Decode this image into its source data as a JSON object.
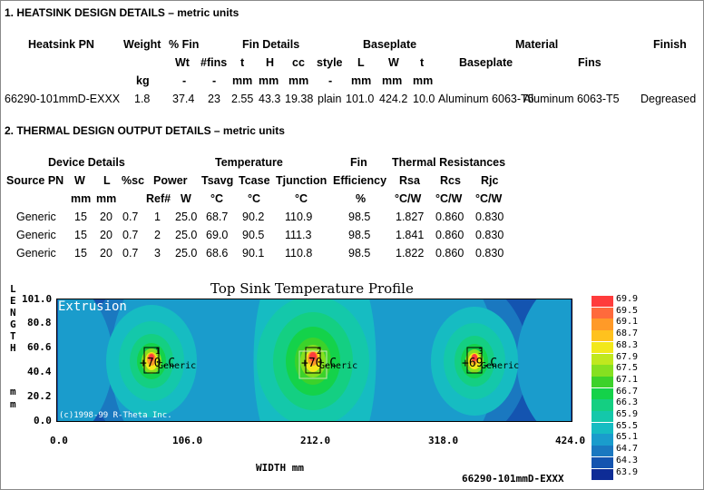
{
  "section1": {
    "title": "1. HEATSINK DESIGN DETAILS – metric units",
    "headers": {
      "pn": "Heatsink PN",
      "weight": "Weight",
      "pct_fin": "% Fin",
      "fin_details": "Fin Details",
      "baseplate": "Baseplate",
      "material": "Material",
      "finish": "Finish",
      "wt": "Wt",
      "nfins": "#fins",
      "t": "t",
      "h": "H",
      "cc": "cc",
      "style": "style",
      "bl": "L",
      "bw": "W",
      "bt": "t",
      "mat_base": "Baseplate",
      "mat_fins": "Fins"
    },
    "units": {
      "weight": "kg",
      "wt": "-",
      "nfins": "-",
      "t": "mm",
      "h": "mm",
      "cc": "mm",
      "style": "-",
      "bl": "mm",
      "bw": "mm",
      "bt": "mm"
    },
    "row": {
      "pn": "66290-101mmD-EXXX",
      "weight": "1.8",
      "wt": "37.4",
      "nfins": "23",
      "t": "2.55",
      "h": "43.3",
      "cc": "19.38",
      "style": "plain",
      "bl": "101.0",
      "bw": "424.2",
      "bt": "10.0",
      "mat_base": "Aluminum 6063-T5",
      "mat_fins": "Aluminum 6063-T5",
      "finish": "Degreased"
    }
  },
  "section2": {
    "title": "2. THERMAL DESIGN OUTPUT DETAILS – metric units",
    "headers": {
      "device_details": "Device Details",
      "temperature": "Temperature",
      "fin": "Fin",
      "thermal_res": "Thermal Resistances",
      "source_pn": "Source PN",
      "w": "W",
      "l": "L",
      "sc": "%sc",
      "power": "Power",
      "tsavg": "Tsavg",
      "tcase": "Tcase",
      "tjunction": "Tjunction",
      "efficiency": "Efficiency",
      "rsa": "Rsa",
      "rcs": "Rcs",
      "rjc": "Rjc"
    },
    "units": {
      "w": "mm",
      "l": "mm",
      "ref": "Ref#",
      "pw": "W",
      "tsavg": "°C",
      "tcase": "°C",
      "tjunction": "°C",
      "efficiency": "%",
      "rsa": "°C/W",
      "rcs": "°C/W",
      "rjc": "°C/W"
    },
    "rows": [
      {
        "source": "Generic",
        "w": "15",
        "l": "20",
        "sc": "0.7",
        "ref": "1",
        "power": "25.0",
        "tsavg": "68.7",
        "tcase": "90.2",
        "tjunction": "110.9",
        "eff": "98.5",
        "rsa": "1.827",
        "rcs": "0.860",
        "rjc": "0.830"
      },
      {
        "source": "Generic",
        "w": "15",
        "l": "20",
        "sc": "0.7",
        "ref": "2",
        "power": "25.0",
        "tsavg": "69.0",
        "tcase": "90.5",
        "tjunction": "111.3",
        "eff": "98.5",
        "rsa": "1.841",
        "rcs": "0.860",
        "rjc": "0.830"
      },
      {
        "source": "Generic",
        "w": "15",
        "l": "20",
        "sc": "0.7",
        "ref": "3",
        "power": "25.0",
        "tsavg": "68.6",
        "tcase": "90.1",
        "tjunction": "110.8",
        "eff": "98.5",
        "rsa": "1.822",
        "rcs": "0.860",
        "rjc": "0.830"
      }
    ]
  },
  "plot": {
    "title": "Top Sink Temperature Profile",
    "extrusion_label": "Extrusion",
    "copyright": "(c)1998-99 R-Theta Inc.",
    "y_axis_letters": [
      "L",
      "E",
      "N",
      "G",
      "T",
      "H",
      "",
      "m",
      "m"
    ],
    "x_label": "WIDTH mm",
    "footer_pn": "66290-101mmD-EXXX",
    "y_ticks": [
      "101.0",
      "80.8",
      "60.6",
      "40.4",
      "20.2",
      "0.0"
    ],
    "x_ticks": [
      "0.0",
      "106.0",
      "212.0",
      "318.0",
      "424.0"
    ],
    "sources": [
      {
        "num": "1",
        "label": "Generic",
        "temp_label": "+70.C"
      },
      {
        "num": "2",
        "label": "Generic",
        "temp_label": "+70.C"
      },
      {
        "num": "3",
        "label": "Generic",
        "temp_label": "+69.C"
      }
    ],
    "legend": [
      {
        "value": "69.9",
        "color": "#ff3c3c"
      },
      {
        "value": "69.5",
        "color": "#ff6a3c"
      },
      {
        "value": "69.1",
        "color": "#ff9a28"
      },
      {
        "value": "68.7",
        "color": "#ffc21e"
      },
      {
        "value": "68.3",
        "color": "#f2e81a"
      },
      {
        "value": "67.9",
        "color": "#c0e81e"
      },
      {
        "value": "67.5",
        "color": "#86e020"
      },
      {
        "value": "67.1",
        "color": "#3cd22a"
      },
      {
        "value": "66.7",
        "color": "#14d24a"
      },
      {
        "value": "66.3",
        "color": "#14cf82"
      },
      {
        "value": "65.9",
        "color": "#14c8aa"
      },
      {
        "value": "65.5",
        "color": "#16bcc2"
      },
      {
        "value": "65.1",
        "color": "#1a9ccc"
      },
      {
        "value": "64.7",
        "color": "#1a78c0"
      },
      {
        "value": "64.3",
        "color": "#1454b0"
      },
      {
        "value": "63.9",
        "color": "#0e2c96"
      }
    ]
  }
}
